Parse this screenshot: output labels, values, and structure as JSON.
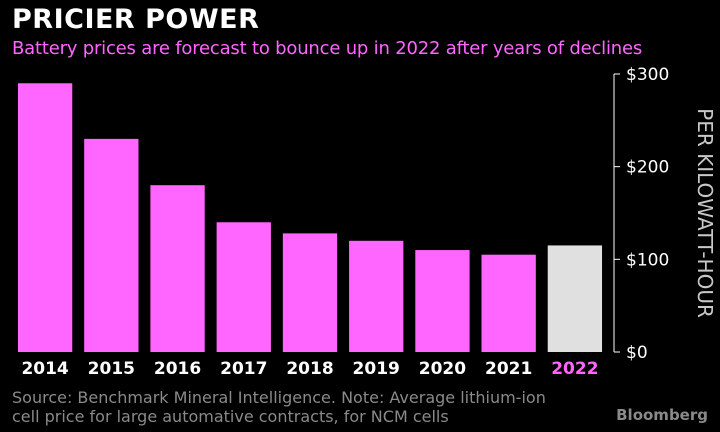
{
  "header": {
    "title": "PRICIER POWER",
    "subtitle": "Battery prices are forecast to bounce up in 2022 after years of declines"
  },
  "footer": {
    "source": "Source: Benchmark Mineral Intelligence. Note: Average lithium-ion cell price for large automative contracts, for NCM cells",
    "brand": "Bloomberg"
  },
  "colors": {
    "background": "#000000",
    "actual_bar": "#ff66ff",
    "forecast_bar": "#e0e0e0",
    "forecast_label": "#ff66ff",
    "axis_text": "#ffffff",
    "muted_text": "#8a8a8a"
  },
  "chart_data": {
    "type": "bar",
    "categories": [
      "2014",
      "2015",
      "2016",
      "2017",
      "2018",
      "2019",
      "2020",
      "2021",
      "2022"
    ],
    "values": [
      290,
      230,
      180,
      140,
      128,
      120,
      110,
      105,
      115
    ],
    "forecast_categories": [
      "2022"
    ],
    "ylabel": "PER KILOWATT-HOUR",
    "ylim": [
      0,
      300
    ],
    "yticks": [
      0,
      100,
      200,
      300
    ],
    "ytick_labels": [
      "$0",
      "$100",
      "$200",
      "$300"
    ],
    "y_axis_position": "right",
    "grid": false,
    "legend": "none"
  }
}
